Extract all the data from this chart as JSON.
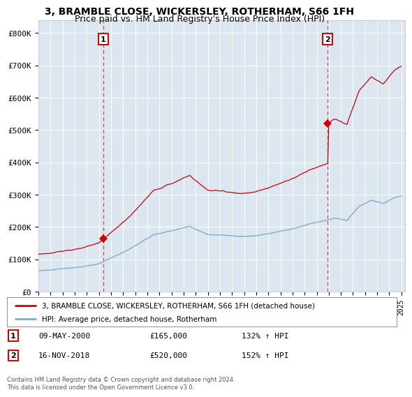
{
  "title": "3, BRAMBLE CLOSE, WICKERSLEY, ROTHERHAM, S66 1FH",
  "subtitle": "Price paid vs. HM Land Registry's House Price Index (HPI)",
  "title_fontsize": 10,
  "subtitle_fontsize": 9,
  "background_color": "#ffffff",
  "plot_bg_color": "#dce6f1",
  "grid_color": "#ffffff",
  "ylabel_ticks": [
    "£0",
    "£100K",
    "£200K",
    "£300K",
    "£400K",
    "£500K",
    "£600K",
    "£700K",
    "£800K"
  ],
  "ytick_values": [
    0,
    100000,
    200000,
    300000,
    400000,
    500000,
    600000,
    700000,
    800000
  ],
  "ylim": [
    0,
    840000
  ],
  "xlim_start": 1995,
  "xlim_end": 2025.3,
  "purchase1_year": 2000.36,
  "purchase1_price": 165000,
  "purchase2_year": 2018.88,
  "purchase2_price": 520000,
  "red_line_color": "#cc0000",
  "blue_line_color": "#7faacc",
  "legend_label_red": "3, BRAMBLE CLOSE, WICKERSLEY, ROTHERHAM, S66 1FH (detached house)",
  "legend_label_blue": "HPI: Average price, detached house, Rotherham",
  "purchase1_date": "09-MAY-2000",
  "purchase1_hpi": "132% ↑ HPI",
  "purchase2_date": "16-NOV-2018",
  "purchase2_hpi": "152% ↑ HPI",
  "footer_text": "Contains HM Land Registry data © Crown copyright and database right 2024.\nThis data is licensed under the Open Government Licence v3.0."
}
